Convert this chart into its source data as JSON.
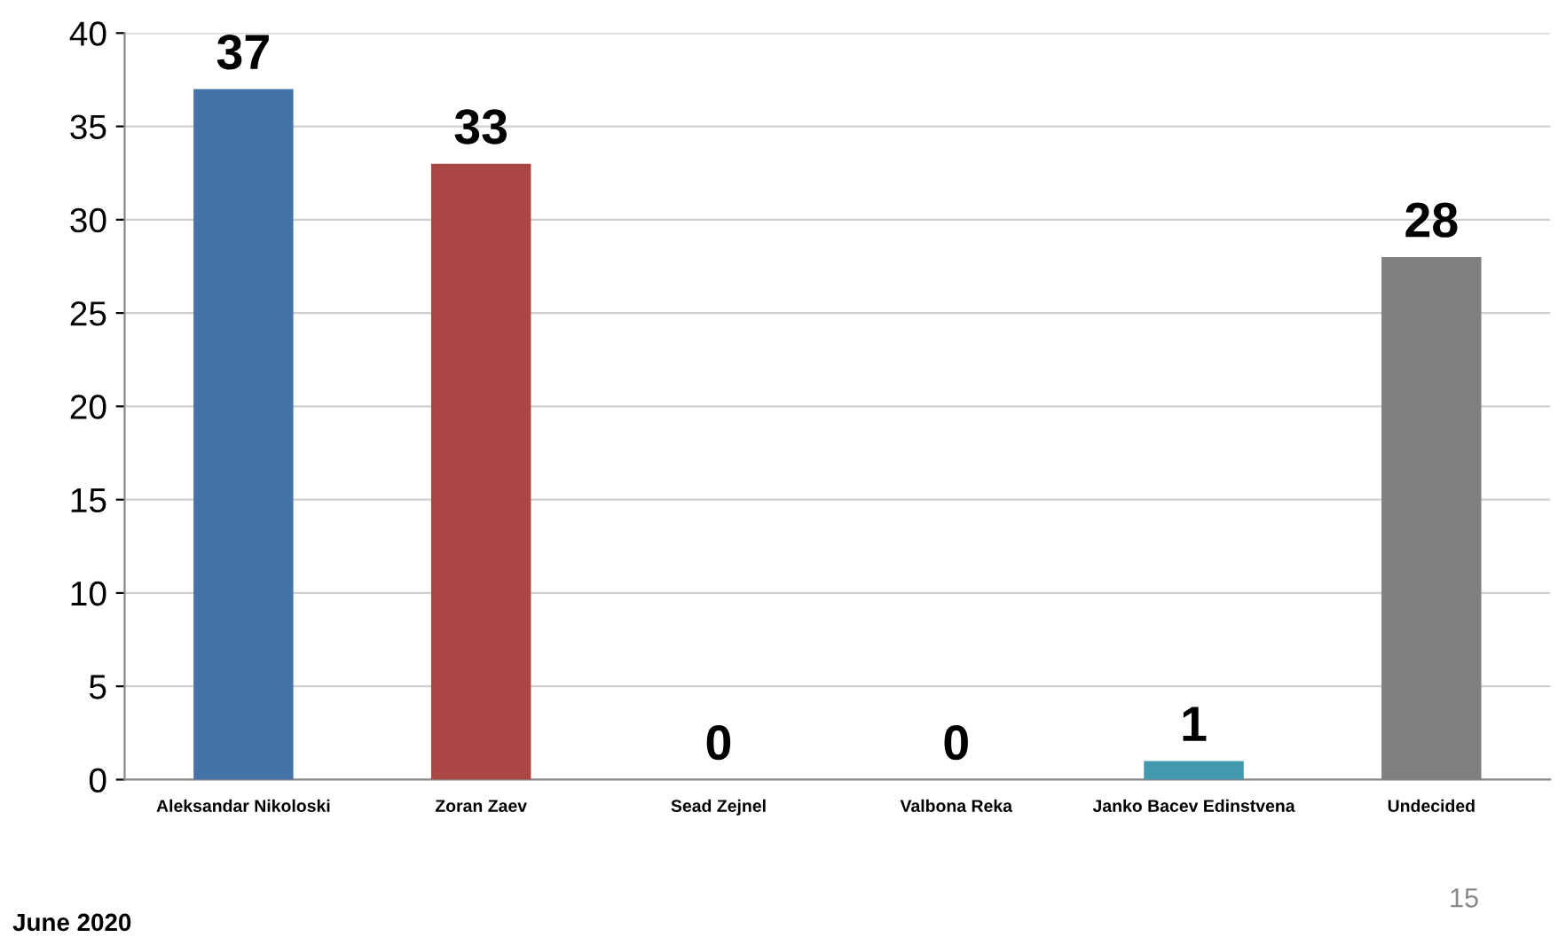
{
  "chart_data": {
    "type": "bar",
    "categories": [
      "Aleksandar Nikoloski",
      "Zoran Zaev",
      "Sead Zejnel",
      "Valbona Reka",
      "Janko Bacev Edinstvena",
      "Undecided"
    ],
    "values": [
      37,
      33,
      0,
      0,
      1,
      28
    ],
    "colors": [
      "#4572a7",
      "#aa4643",
      "#4198af",
      "#4198af",
      "#4198af",
      "#808080"
    ],
    "data_labels": true,
    "ylim": [
      0,
      40
    ],
    "yticks": [
      0,
      5,
      10,
      15,
      20,
      25,
      30,
      35,
      40
    ],
    "grid": "y",
    "legend": false,
    "annotations": [
      "June 2020",
      "15"
    ]
  }
}
